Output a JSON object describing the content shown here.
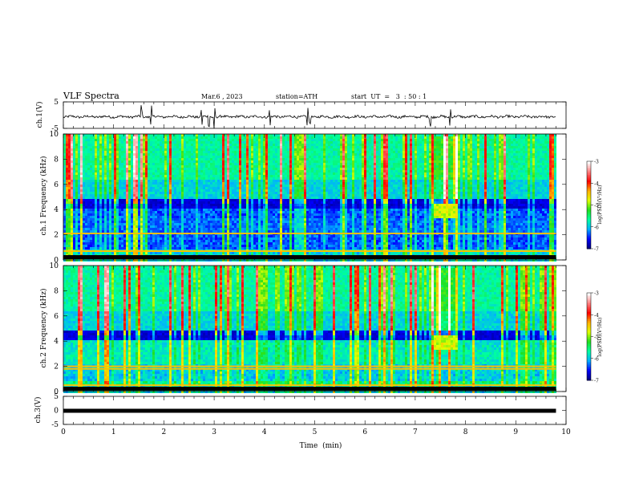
{
  "header": {
    "title": "VLF  Spectra",
    "date": "Mar.6  , 2023",
    "station": "station=ATH",
    "start_ut": "start  UT  =   3  : 50 : 1"
  },
  "chart_data": [
    {
      "type": "line",
      "panel": "ch1-waveform",
      "ylabel": "ch.1(V)",
      "xlim": [
        0,
        10
      ],
      "ylim": [
        -5,
        5
      ],
      "yticks": [
        "5",
        "-5"
      ],
      "trace_level": 0,
      "trace_end_min": 9.8,
      "spike_minutes": [
        1.55,
        1.75,
        2.75,
        2.9,
        3.0,
        4.1,
        4.85,
        4.9,
        7.3,
        7.7
      ]
    },
    {
      "type": "heatmap",
      "panel": "ch1-spectrogram",
      "ylabel": "ch.1 Frequency (kHz)",
      "xlim": [
        0,
        10
      ],
      "ylim": [
        0,
        10
      ],
      "yticks": [
        "0",
        "2",
        "4",
        "6",
        "8",
        "10"
      ],
      "colorbar": {
        "label": "log(PSD)(V²/Hz)",
        "range": [
          -7,
          -3
        ],
        "ticks": [
          "-3",
          "-4",
          "-5",
          "-6",
          "-7"
        ]
      },
      "features": {
        "emission_band_khz": [
          3.5,
          4.5
        ],
        "emission_minutes": [
          7.35,
          7.8
        ],
        "strong_lines_khz": [
          0.2,
          0.7,
          2.1
        ]
      }
    },
    {
      "type": "heatmap",
      "panel": "ch2-spectrogram",
      "ylabel": "ch.2 Frequency (kHz)",
      "xlim": [
        0,
        10
      ],
      "ylim": [
        0,
        10
      ],
      "yticks": [
        "0",
        "2",
        "4",
        "6",
        "8",
        "10"
      ],
      "colorbar": {
        "label": "log(PSD)(V²/Hz)",
        "range": [
          -7,
          -3
        ],
        "ticks": [
          "-3",
          "-4",
          "-5",
          "-6",
          "-7"
        ]
      },
      "features": {
        "emission_band_khz": [
          3.5,
          4.5
        ],
        "emission_minutes": [
          7.35,
          7.8
        ],
        "strong_lines_khz": [
          0.5,
          1.8,
          2.0
        ]
      }
    },
    {
      "type": "line",
      "panel": "ch3-waveform",
      "ylabel": "ch.3(V)",
      "xlabel": "Time  (min)",
      "xlim": [
        0,
        10
      ],
      "ylim": [
        -5,
        5
      ],
      "yticks": [
        "5",
        "0",
        "-5"
      ],
      "xticks": [
        "0",
        "1",
        "2",
        "3",
        "4",
        "5",
        "6",
        "7",
        "8",
        "9",
        "10"
      ],
      "trace_level": 0,
      "trace_end_min": 9.8
    }
  ],
  "colors": {
    "colormap": [
      "#000000",
      "#000080",
      "#0000ff",
      "#00b0ff",
      "#00ffa0",
      "#20e020",
      "#e0ff00",
      "#ffb000",
      "#ff0000",
      "#ff8080",
      "#ffffff"
    ]
  }
}
